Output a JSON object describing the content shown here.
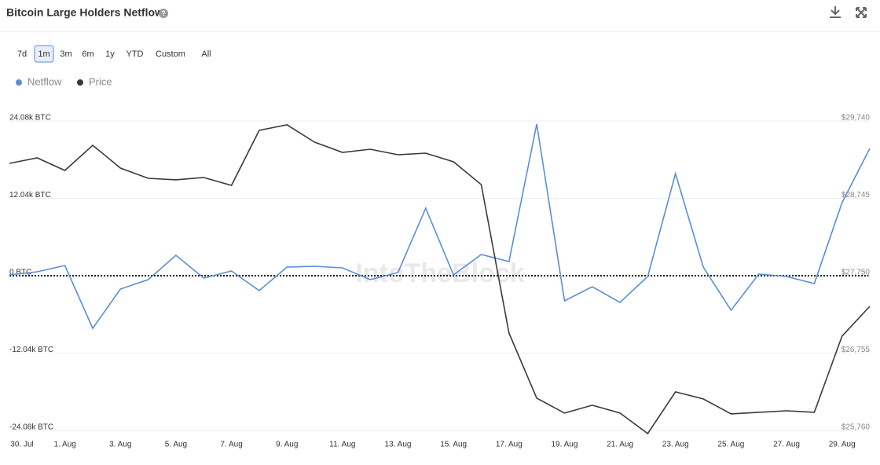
{
  "header": {
    "title": "Bitcoin Large Holders Netflow"
  },
  "range_buttons": [
    "7d",
    "1m",
    "3m",
    "6m",
    "1y",
    "YTD",
    "Custom",
    "All"
  ],
  "selected_range_index": 1,
  "chart_data": {
    "type": "line",
    "watermark": "IntoTheBlock",
    "categories": [
      "30. Jul",
      null,
      "1. Aug",
      null,
      "3. Aug",
      null,
      "5. Aug",
      null,
      "7. Aug",
      null,
      "9. Aug",
      null,
      "11. Aug",
      null,
      "13. Aug",
      null,
      "15. Aug",
      null,
      "17. Aug",
      null,
      "19. Aug",
      null,
      "21. Aug",
      null,
      "23. Aug",
      null,
      "25. Aug",
      null,
      "27. Aug",
      null,
      "29. Aug",
      null
    ],
    "series": [
      {
        "name": "Netflow",
        "color": "#5b8dd9",
        "values": [
          120,
          610,
          1590,
          -8190,
          -2080,
          -610,
          3180,
          -370,
          730,
          -2320,
          1340,
          1470,
          1220,
          -610,
          490,
          10510,
          120,
          3300,
          2200,
          23590,
          -3910,
          -1710,
          -4160,
          -120,
          15890,
          1340,
          -5380,
          240,
          -120,
          -1220,
          11370,
          19800
        ]
      },
      {
        "name": "Price",
        "color": "#3a3a3a",
        "axis": "y2",
        "values": [
          29195,
          29265,
          29104,
          29427,
          29134,
          29003,
          28983,
          29013,
          28912,
          29619,
          29690,
          29467,
          29336,
          29376,
          29306,
          29326,
          29215,
          28922,
          27013,
          26175,
          25983,
          26084,
          25983,
          25720,
          26256,
          26165,
          25973,
          25993,
          26013,
          25993,
          26973,
          27356
        ]
      }
    ],
    "ylim": [
      -24080,
      24080
    ],
    "yticks": [
      {
        "value": -24080,
        "label": "-24.08k BTC"
      },
      {
        "value": -12040,
        "label": "-12.04k BTC"
      },
      {
        "value": 0,
        "label": "0 BTC"
      },
      {
        "value": 12040,
        "label": "12.04k BTC"
      },
      {
        "value": 24080,
        "label": "24.08k BTC"
      }
    ],
    "y2lim": [
      25760,
      29740
    ],
    "y2ticks": [
      {
        "value": 25760,
        "label": "$25,760"
      },
      {
        "value": 26755,
        "label": "$26,755"
      },
      {
        "value": 27750,
        "label": "$27,750"
      },
      {
        "value": 28745,
        "label": "$28,745"
      },
      {
        "value": 29740,
        "label": "$29,740"
      }
    ],
    "grid": true
  }
}
